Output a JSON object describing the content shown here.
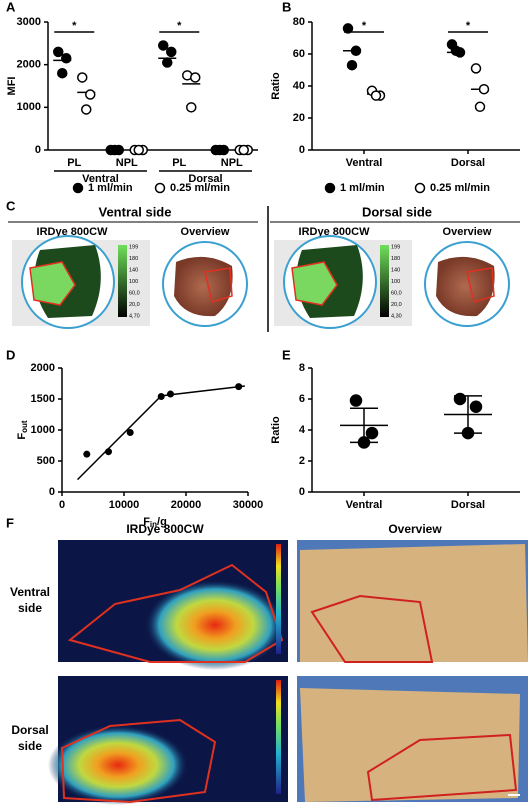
{
  "panel_labels": [
    "A",
    "B",
    "C",
    "D",
    "E",
    "F"
  ],
  "chart_data": [
    {
      "type": "dot",
      "ylabel": "MFI",
      "categories": [
        "PL",
        "NPL",
        "PL",
        "NPL"
      ],
      "group_labels": [
        "Ventral",
        "Dorsal"
      ],
      "series": [
        {
          "name": "1 ml/min",
          "color": "#000000",
          "values": [
            [
              2300,
              2150,
              1800
            ],
            [
              0,
              0,
              0
            ],
            [
              2450,
              2300,
              2050
            ],
            [
              0,
              0,
              0
            ]
          ],
          "means": [
            2100,
            0,
            2150,
            0
          ]
        },
        {
          "name": "0.25 ml/min",
          "color": "#ffffff",
          "values": [
            [
              1700,
              1300,
              950
            ],
            [
              0,
              0,
              0
            ],
            [
              1750,
              1700,
              1000
            ],
            [
              0,
              0,
              0
            ]
          ],
          "means": [
            1350,
            0,
            1550,
            0
          ]
        }
      ],
      "annotations": [
        "*",
        null,
        "*",
        null
      ],
      "ylim": [
        0,
        3000
      ],
      "yticks": [
        0,
        1000,
        2000,
        3000
      ]
    },
    {
      "type": "dot",
      "ylabel": "Ratio",
      "categories": [
        "Ventral",
        "Dorsal"
      ],
      "series": [
        {
          "name": "1 ml/min",
          "color": "#000000",
          "values": [
            [
              76,
              62,
              53
            ],
            [
              66,
              61,
              62
            ]
          ],
          "means": [
            62,
            61
          ]
        },
        {
          "name": "0.25 ml/min",
          "color": "#ffffff",
          "values": [
            [
              37,
              34,
              34
            ],
            [
              51,
              38,
              27
            ]
          ],
          "means": [
            35,
            38
          ]
        }
      ],
      "annotations": [
        "*",
        "*"
      ],
      "ylim": [
        0,
        80
      ],
      "yticks": [
        0,
        20,
        40,
        60,
        80
      ]
    },
    {
      "type": "scatter",
      "ylabel": {
        "base": "F",
        "sub": "out"
      },
      "xlabel": {
        "base": "F",
        "sub": "in",
        "rest": "/g"
      },
      "x": [
        4000,
        7500,
        11000,
        16000,
        17500,
        28500
      ],
      "values": [
        610,
        650,
        960,
        1540,
        1580,
        1700
      ],
      "fit": {
        "x": [
          2500,
          16000,
          29500
        ],
        "y": [
          200,
          1550,
          1710
        ]
      },
      "xlim": [
        0,
        30000
      ],
      "xticks": [
        0,
        10000,
        20000,
        30000
      ],
      "ylim": [
        0,
        2000
      ],
      "yticks": [
        0,
        500,
        1000,
        1500,
        2000
      ]
    },
    {
      "type": "dot",
      "ylabel": "Ratio",
      "categories": [
        "Ventral",
        "Dorsal"
      ],
      "series": [
        {
          "color": "#000000",
          "values": [
            [
              5.9,
              3.8,
              3.2
            ],
            [
              6.0,
              5.5,
              3.8
            ]
          ],
          "means": [
            4.3,
            5.0
          ],
          "errors": [
            1.1,
            1.2
          ]
        }
      ],
      "ylim": [
        0,
        8
      ],
      "yticks": [
        0,
        2,
        4,
        6,
        8
      ]
    }
  ],
  "panel_c": {
    "sides": [
      {
        "title": "Ventral side",
        "image_label": "IRDye 800CW",
        "overview_label": "Overview",
        "scale": [
          "199",
          "180",
          "140",
          "100",
          "60,0",
          "20,0",
          "4,70"
        ]
      },
      {
        "title": "Dorsal side",
        "image_label": "IRDye 800CW",
        "overview_label": "Overview",
        "scale": [
          "199",
          "180",
          "140",
          "100",
          "60,0",
          "20,0",
          "4,30"
        ]
      }
    ]
  },
  "panel_f": {
    "image_label": "IRDye 800CW",
    "overview_label": "Overview",
    "rows": [
      [
        "Ventral",
        "side"
      ],
      [
        "Dorsal",
        "side"
      ]
    ]
  }
}
